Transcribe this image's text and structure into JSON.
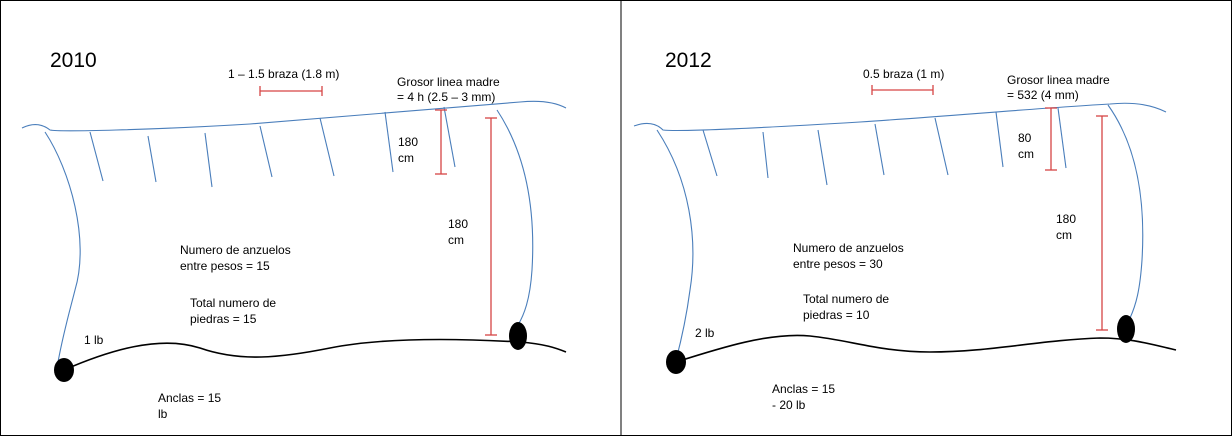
{
  "panels": [
    {
      "year": "2010",
      "spacing": "1 – 1.5 braza (1.8 m)",
      "grosor_line1": "Grosor linea madre",
      "grosor_line2": "= 4 h (2.5 – 3 mm)",
      "drop_short_1": "180",
      "drop_short_2": "cm",
      "drop_long_1": "180",
      "drop_long_2": "cm",
      "hooks_1": "Numero de anzuelos",
      "hooks_2": "entre pesos = 15",
      "stones_1": "Total numero de",
      "stones_2": "piedras =  15",
      "weight": "1 lb",
      "anchors_1": "Anclas = 15",
      "anchors_2": "lb"
    },
    {
      "year": "2012",
      "spacing": "0.5 braza (1 m)",
      "grosor_line1": "Grosor linea madre",
      "grosor_line2": "= 532 (4 mm)",
      "drop_short_1": "80",
      "drop_short_2": "cm",
      "drop_long_1": "180",
      "drop_long_2": "cm",
      "hooks_1": "Numero de anzuelos",
      "hooks_2": "entre pesos = 30",
      "stones_1": "Total numero de",
      "stones_2": "piedras =  10",
      "weight": "2 lb",
      "anchors_1": "Anclas = 15",
      "anchors_2": "- 20 lb"
    }
  ],
  "colors": {
    "line": "#4a7ebb",
    "measure": "#d64545",
    "bottom": "#000000"
  }
}
